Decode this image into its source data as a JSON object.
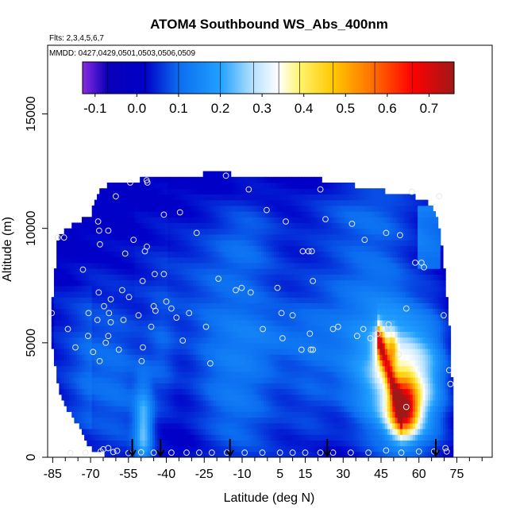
{
  "chart_data": {
    "type": "heatmap",
    "title": "ATOM4 Southbound WS_Abs_400nm",
    "flights_label": "Flts: 2,3,4,5,6,7",
    "dates_label": "MMDD: 0427,0429,0501,0503,0506,0509",
    "xlabel": "Latitude (deg N)",
    "ylabel": "Altitude (m)",
    "xlim": [
      -87,
      89
    ],
    "ylim": [
      0,
      18000
    ],
    "x_ticks": [
      -85,
      -70,
      -55,
      -40,
      -25,
      -10,
      5,
      15,
      30,
      45,
      60,
      75
    ],
    "x_minor_ticks": [
      -80,
      -75,
      -65,
      -60,
      -50,
      -45,
      -35,
      -30,
      -20,
      -15,
      -5,
      0,
      10,
      20,
      25,
      35,
      40,
      50,
      55,
      65,
      70,
      80,
      85
    ],
    "y_ticks": [
      0,
      5000,
      10000,
      15000
    ],
    "colorbar": {
      "min": -0.13,
      "max": 0.76,
      "ticks": [
        "-0.1",
        "0.0",
        "0.1",
        "0.2",
        "0.3",
        "0.4",
        "0.5",
        "0.6",
        "0.7"
      ],
      "tick_values": [
        -0.1,
        0,
        0.1,
        0.2,
        0.3,
        0.4,
        0.5,
        0.6,
        0.7
      ],
      "stops": [
        {
          "v": -0.13,
          "c": "#8a2be2"
        },
        {
          "v": -0.07,
          "c": "#0a00b8"
        },
        {
          "v": 0.02,
          "c": "#0000c8"
        },
        {
          "v": 0.1,
          "c": "#0b6cf0"
        },
        {
          "v": 0.2,
          "c": "#20a0ff"
        },
        {
          "v": 0.28,
          "c": "#b8e2ff"
        },
        {
          "v": 0.34,
          "c": "#ffffff"
        },
        {
          "v": 0.39,
          "c": "#fff46e"
        },
        {
          "v": 0.47,
          "c": "#ffc800"
        },
        {
          "v": 0.57,
          "c": "#ff6a00"
        },
        {
          "v": 0.66,
          "c": "#ff0000"
        },
        {
          "v": 0.76,
          "c": "#a01818"
        }
      ]
    },
    "curtain_mask": [
      {
        "lat": -85.5,
        "bottom": 5000,
        "top": 6500
      },
      {
        "lat": -83,
        "bottom": 3200,
        "top": 9600
      },
      {
        "lat": -80,
        "bottom": 2200,
        "top": 10000
      },
      {
        "lat": -75,
        "bottom": 1400,
        "top": 10300
      },
      {
        "lat": -70,
        "bottom": 400,
        "top": 10600
      },
      {
        "lat": -66,
        "bottom": 200,
        "top": 11800
      },
      {
        "lat": -62,
        "bottom": 0,
        "top": 11900
      },
      {
        "lat": -57,
        "bottom": 0,
        "top": 12000
      },
      {
        "lat": -52,
        "bottom": 0,
        "top": 12100
      },
      {
        "lat": -47,
        "bottom": 0,
        "top": 12200
      },
      {
        "lat": -40,
        "bottom": 0,
        "top": 12300
      },
      {
        "lat": -20,
        "bottom": 0,
        "top": 12400
      },
      {
        "lat": 0,
        "bottom": 0,
        "top": 12300
      },
      {
        "lat": 24,
        "bottom": 0,
        "top": 12100
      },
      {
        "lat": 38,
        "bottom": 0,
        "top": 11800
      },
      {
        "lat": 48,
        "bottom": 0,
        "top": 11600
      },
      {
        "lat": 58,
        "bottom": 0,
        "top": 11400
      },
      {
        "lat": 63,
        "bottom": 0,
        "top": 11200
      },
      {
        "lat": 67,
        "bottom": 0,
        "top": 10600
      },
      {
        "lat": 69.5,
        "bottom": 0,
        "top": 9000
      },
      {
        "lat": 71,
        "bottom": 0,
        "top": 7000
      },
      {
        "lat": 72.5,
        "bottom": 0,
        "top": 5000
      },
      {
        "lat": 73.2,
        "bottom": 0,
        "top": 3000
      }
    ],
    "features": [
      {
        "lat": -37,
        "alt": 5000,
        "slat": 55,
        "salt": 3000,
        "amp": 0.028
      },
      {
        "lat": -68,
        "alt": 3500,
        "slat": 8,
        "salt": 2800,
        "amp": 0.07
      },
      {
        "lat": -56,
        "alt": 2500,
        "slat": 6,
        "salt": 2500,
        "amp": 0.05
      },
      {
        "lat": -49,
        "alt": 1200,
        "slat": 2.5,
        "salt": 1400,
        "amp": 0.2
      },
      {
        "lat": -42,
        "alt": 4200,
        "slat": 4,
        "salt": 2000,
        "amp": 0.05
      },
      {
        "lat": -18,
        "alt": 2800,
        "slat": 9,
        "salt": 2600,
        "amp": 0.06
      },
      {
        "lat": -5,
        "alt": 2400,
        "slat": 10,
        "salt": 2800,
        "amp": 0.06
      },
      {
        "lat": 17,
        "alt": 3000,
        "slat": 7,
        "salt": 3000,
        "amp": 0.05
      },
      {
        "lat": 3,
        "alt": 5300,
        "slat": 14,
        "salt": 900,
        "amp": 0.045
      },
      {
        "lat": 30,
        "alt": 5000,
        "slat": 8,
        "salt": 2000,
        "amp": 0.04
      },
      {
        "lat": -20,
        "alt": 8000,
        "slat": 20,
        "salt": 2300,
        "amp": 0.055
      },
      {
        "lat": -8,
        "alt": 9700,
        "slat": 9,
        "salt": 1400,
        "amp": 0.05
      },
      {
        "lat": 34,
        "alt": 8600,
        "slat": 13,
        "salt": 3000,
        "amp": 0.05
      },
      {
        "lat": 47,
        "alt": 7200,
        "slat": 10,
        "salt": 3000,
        "amp": 0.055
      },
      {
        "lat": 40,
        "alt": 10800,
        "slat": 20,
        "salt": 900,
        "amp": 0.04
      },
      {
        "lat": 47,
        "alt": 3300,
        "slat": 10,
        "salt": 2000,
        "amp": 0.2
      },
      {
        "lat": 54,
        "alt": 2100,
        "slat": 4,
        "salt": 800,
        "amp": 0.52
      },
      {
        "lat": 57,
        "alt": 3300,
        "slat": 7,
        "salt": 1800,
        "amp": 0.2
      },
      {
        "lat": 45,
        "alt": 4800,
        "slat": 2,
        "salt": 700,
        "amp": 0.2
      },
      {
        "lat": 49.5,
        "alt": 4700,
        "slat": 1.3,
        "salt": 600,
        "amp": 0.2
      },
      {
        "lat": 66,
        "alt": 3500,
        "slat": 5,
        "salt": 2500,
        "amp": 0.08
      }
    ],
    "ridge": {
      "lat_start": 44,
      "lat_end": 53,
      "alt_start": 5200,
      "alt_end": 2000,
      "amp": 0.3,
      "width_deg": 0.9
    },
    "blocks": [
      {
        "lat0": -84,
        "lat1": -70,
        "alt0": 1200,
        "alt1": 7500,
        "v": 0.015
      },
      {
        "lat0": -52,
        "lat1": -40,
        "alt0": 7000,
        "alt1": 12300,
        "v": 0.005
      },
      {
        "lat0": -10,
        "lat1": 10,
        "alt0": 10300,
        "alt1": 12400,
        "v": 0.0
      },
      {
        "lat0": 60,
        "lat1": 68,
        "alt0": 8200,
        "alt1": 11000,
        "v": 0.09
      }
    ],
    "sample_points": [
      {
        "lat": -85.4,
        "alt": 6300
      },
      {
        "lat": -83,
        "alt": 9600
      },
      {
        "lat": -80.5,
        "alt": 9600
      },
      {
        "lat": -79,
        "alt": 5600
      },
      {
        "lat": -76,
        "alt": 4800
      },
      {
        "lat": -73,
        "alt": 8200
      },
      {
        "lat": -71,
        "alt": 5300
      },
      {
        "lat": -70.8,
        "alt": 6300
      },
      {
        "lat": -69,
        "alt": 4600
      },
      {
        "lat": -67.3,
        "alt": 6000
      },
      {
        "lat": -66.8,
        "alt": 7200
      },
      {
        "lat": -66.4,
        "alt": 4200
      },
      {
        "lat": -66.3,
        "alt": 9300
      },
      {
        "lat": -67,
        "alt": 10300
      },
      {
        "lat": -66.6,
        "alt": 9900
      },
      {
        "lat": -64.7,
        "alt": 6600
      },
      {
        "lat": -64,
        "alt": 5000
      },
      {
        "lat": -63,
        "alt": 5300
      },
      {
        "lat": -62.7,
        "alt": 6300
      },
      {
        "lat": -63,
        "alt": 9900
      },
      {
        "lat": -62,
        "alt": 6900
      },
      {
        "lat": -62,
        "alt": 5900
      },
      {
        "lat": -60,
        "alt": 11400
      },
      {
        "lat": -58.8,
        "alt": 4700
      },
      {
        "lat": -57.5,
        "alt": 7300
      },
      {
        "lat": -57,
        "alt": 6000
      },
      {
        "lat": -56.3,
        "alt": 8900
      },
      {
        "lat": -54.8,
        "alt": 7000
      },
      {
        "lat": -54.3,
        "alt": 12000
      },
      {
        "lat": -53,
        "alt": 9500
      },
      {
        "lat": -51,
        "alt": 6200
      },
      {
        "lat": -49.8,
        "alt": 4200
      },
      {
        "lat": -49.3,
        "alt": 4800
      },
      {
        "lat": -49.4,
        "alt": 7700
      },
      {
        "lat": -48.5,
        "alt": 9000
      },
      {
        "lat": -47.7,
        "alt": 9200
      },
      {
        "lat": -47.5,
        "alt": 12000
      },
      {
        "lat": -47.8,
        "alt": 12100
      },
      {
        "lat": -46,
        "alt": 5700
      },
      {
        "lat": -44.6,
        "alt": 8000
      },
      {
        "lat": -45,
        "alt": 6600
      },
      {
        "lat": -44.3,
        "alt": 6400
      },
      {
        "lat": -41,
        "alt": 8000
      },
      {
        "lat": -41,
        "alt": 10600
      },
      {
        "lat": -40,
        "alt": 6800
      },
      {
        "lat": -38,
        "alt": 6500
      },
      {
        "lat": -36,
        "alt": 6100
      },
      {
        "lat": -34.6,
        "alt": 10700
      },
      {
        "lat": -33.5,
        "alt": 5100
      },
      {
        "lat": -31,
        "alt": 6300
      },
      {
        "lat": -28,
        "alt": 9800
      },
      {
        "lat": -24.3,
        "alt": 5700
      },
      {
        "lat": -22.6,
        "alt": 4100
      },
      {
        "lat": -19.4,
        "alt": 7800
      },
      {
        "lat": -16.4,
        "alt": 12300
      },
      {
        "lat": -12.5,
        "alt": 7300
      },
      {
        "lat": -10.2,
        "alt": 7400
      },
      {
        "lat": -7.4,
        "alt": 11700
      },
      {
        "lat": -6.6,
        "alt": 7200
      },
      {
        "lat": -1.8,
        "alt": 5600
      },
      {
        "lat": -0.3,
        "alt": 10800
      },
      {
        "lat": 4,
        "alt": 7400
      },
      {
        "lat": 5.6,
        "alt": 6300
      },
      {
        "lat": 6,
        "alt": 5200
      },
      {
        "lat": 7.3,
        "alt": 10300
      },
      {
        "lat": 10,
        "alt": 6200
      },
      {
        "lat": 13.5,
        "alt": 4700
      },
      {
        "lat": 14,
        "alt": 9000
      },
      {
        "lat": 16.3,
        "alt": 9000
      },
      {
        "lat": 17.6,
        "alt": 9000
      },
      {
        "lat": 18,
        "alt": 7700
      },
      {
        "lat": 16.8,
        "alt": 5400
      },
      {
        "lat": 17.2,
        "alt": 4700
      },
      {
        "lat": 18,
        "alt": 4700
      },
      {
        "lat": 21,
        "alt": 11700
      },
      {
        "lat": 23,
        "alt": 10400
      },
      {
        "lat": 26,
        "alt": 5600
      },
      {
        "lat": 28,
        "alt": 5700
      },
      {
        "lat": 33.5,
        "alt": 10200
      },
      {
        "lat": 35.5,
        "alt": 5300
      },
      {
        "lat": 38,
        "alt": 5600
      },
      {
        "lat": 38.5,
        "alt": 9500
      },
      {
        "lat": 40.8,
        "alt": 5200
      },
      {
        "lat": 43.6,
        "alt": 5400
      },
      {
        "lat": 47,
        "alt": 9800
      },
      {
        "lat": 48,
        "alt": 5800
      },
      {
        "lat": 52.5,
        "alt": 9700
      },
      {
        "lat": 57.2,
        "alt": 11600
      },
      {
        "lat": 52,
        "alt": 4500
      },
      {
        "lat": 55,
        "alt": 6500
      },
      {
        "lat": 58.5,
        "alt": 8500
      },
      {
        "lat": 61,
        "alt": 8500
      },
      {
        "lat": 62,
        "alt": 8300
      },
      {
        "lat": 55,
        "alt": 2200
      },
      {
        "lat": 57,
        "alt": 1100
      },
      {
        "lat": 68,
        "alt": 11400
      },
      {
        "lat": 69.8,
        "alt": 6200
      },
      {
        "lat": 72,
        "alt": 3800
      },
      {
        "lat": 72.5,
        "alt": 3200
      },
      {
        "lat": 70.5,
        "alt": 400
      },
      {
        "lat": -78,
        "alt": 180
      },
      {
        "lat": -72,
        "alt": 200
      },
      {
        "lat": -66,
        "alt": 250
      },
      {
        "lat": -65,
        "alt": 350
      },
      {
        "lat": -63,
        "alt": 400
      },
      {
        "lat": -61,
        "alt": 230
      },
      {
        "lat": -59.5,
        "alt": 280
      },
      {
        "lat": -55,
        "alt": 180
      },
      {
        "lat": -50,
        "alt": 220
      },
      {
        "lat": -45,
        "alt": 200
      },
      {
        "lat": -38,
        "alt": 200
      },
      {
        "lat": -32,
        "alt": 200
      },
      {
        "lat": -27,
        "alt": 200
      },
      {
        "lat": -22,
        "alt": 200
      },
      {
        "lat": -16,
        "alt": 200
      },
      {
        "lat": -9,
        "alt": 200
      },
      {
        "lat": -2,
        "alt": 200
      },
      {
        "lat": 5,
        "alt": 200
      },
      {
        "lat": 10,
        "alt": 200
      },
      {
        "lat": 15,
        "alt": 200
      },
      {
        "lat": 21,
        "alt": 200
      },
      {
        "lat": 26,
        "alt": 200
      },
      {
        "lat": 33,
        "alt": 200
      },
      {
        "lat": 40,
        "alt": 200
      },
      {
        "lat": 47,
        "alt": 300
      },
      {
        "lat": 53,
        "alt": 200
      },
      {
        "lat": 60,
        "alt": 250
      },
      {
        "lat": 66,
        "alt": 250
      },
      {
        "lat": 71,
        "alt": 250
      }
    ],
    "profile_arrows": [
      {
        "lat": -53.5,
        "alt_top": 800
      },
      {
        "lat": -42.3,
        "alt_top": 800
      },
      {
        "lat": -14.8,
        "alt_top": 800
      },
      {
        "lat": 23.7,
        "alt_top": 800
      },
      {
        "lat": 66.7,
        "alt_top": 800
      }
    ]
  }
}
